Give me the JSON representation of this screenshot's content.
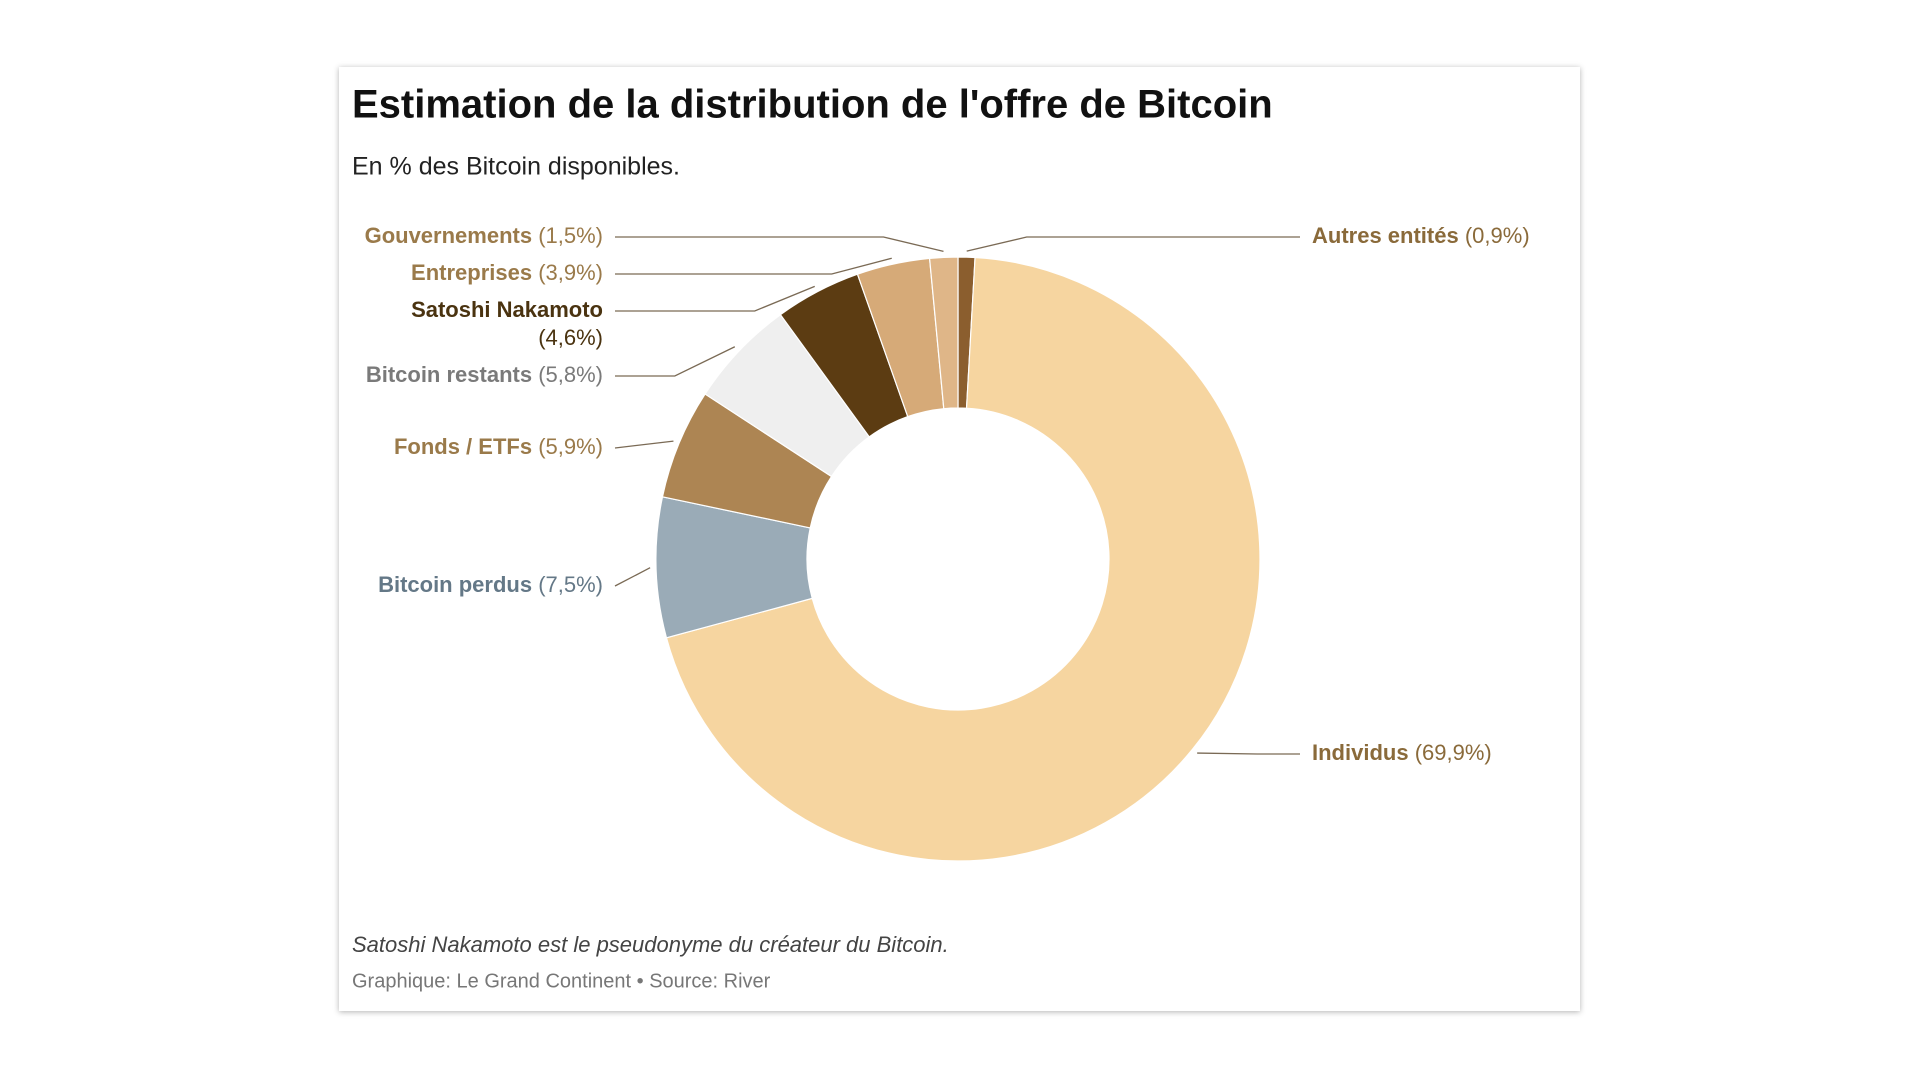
{
  "chart_data": {
    "type": "donut",
    "title": "Estimation de la distribution de l'offre de Bitcoin",
    "subtitle": "En % des Bitcoin disponibles.",
    "note": "Satoshi Nakamoto est le pseudonyme du créateur du Bitcoin.",
    "source": "Graphique: Le Grand Continent • Source: River",
    "categories": [
      "Autres entités",
      "Individus",
      "Bitcoin perdus",
      "Fonds / ETFs",
      "Bitcoin restants",
      "Satoshi Nakamoto",
      "Entreprises",
      "Gouvernements"
    ],
    "values": [
      0.9,
      69.9,
      7.5,
      5.9,
      5.8,
      4.6,
      3.9,
      1.5
    ],
    "value_labels": [
      "(0,9%)",
      "(69,9%)",
      "(7,5%)",
      "(5,9%)",
      "(5,8%)",
      "(4,6%)",
      "(3,9%)",
      "(1,5%)"
    ],
    "colors": [
      "#8b5e2e",
      "#f6d5a0",
      "#9aabb7",
      "#ad8553",
      "#efefef",
      "#5c3c12",
      "#d6aa78",
      "#dfb688"
    ],
    "label_colors": [
      "#8a6a3a",
      "#8a6a3a",
      "#647887",
      "#9a7a4a",
      "#7a7a7a",
      "#4a3310",
      "#9a7a4a",
      "#9a7a4a"
    ]
  }
}
